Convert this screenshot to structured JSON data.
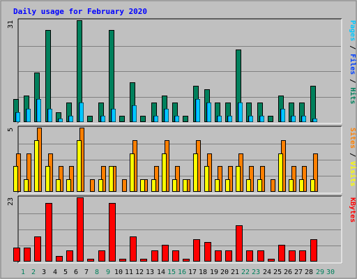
{
  "chart_data": {
    "type": "bar",
    "title": "Daily usage for February 2020",
    "categories": [
      "1",
      "2",
      "3",
      "4",
      "5",
      "6",
      "7",
      "8",
      "9",
      "10",
      "11",
      "12",
      "13",
      "14",
      "15",
      "16",
      "17",
      "18",
      "19",
      "20",
      "21",
      "22",
      "23",
      "24",
      "25",
      "26",
      "27",
      "28",
      "29",
      "30"
    ],
    "weekend_categories": [
      "1",
      "2",
      "8",
      "9",
      "15",
      "16",
      "22",
      "23",
      "29",
      "30"
    ],
    "panels": [
      {
        "key": "hits_files",
        "max_label": "31",
        "ymax": 31,
        "side_labels": [
          {
            "text": "Pages",
            "color": "#00c8ff"
          },
          {
            "text": " / ",
            "color": "#000000"
          },
          {
            "text": "Files",
            "color": "#0040ff"
          },
          {
            "text": " / ",
            "color": "#000000"
          },
          {
            "text": "Hits",
            "color": "#00805c"
          }
        ],
        "series": [
          {
            "name": "Hits",
            "color": "#00805c",
            "values": [
              7,
              8,
              15,
              28,
              3,
              6,
              31,
              2,
              6,
              28,
              2,
              12,
              2,
              6,
              8,
              6,
              2,
              11,
              10,
              6,
              6,
              22,
              6,
              6,
              2,
              8,
              6,
              6,
              11,
              0
            ]
          },
          {
            "name": "Files",
            "color": "#0040ff",
            "values": [
              3,
              4,
              7,
              4,
              1,
              2,
              6,
              0,
              2,
              4,
              0,
              5,
              0,
              2,
              4,
              2,
              0,
              7,
              6,
              2,
              2,
              6,
              2,
              2,
              0,
              4,
              2,
              2,
              1,
              0
            ]
          },
          {
            "name": "Pages",
            "color": "#00c8ff",
            "values": [
              3,
              4,
              7,
              4,
              1,
              2,
              6,
              0,
              2,
              4,
              0,
              5,
              0,
              2,
              4,
              2,
              0,
              7,
              6,
              2,
              2,
              6,
              2,
              2,
              0,
              4,
              2,
              2,
              1,
              0
            ]
          }
        ]
      },
      {
        "key": "visits_sites",
        "max_label": "5",
        "ymax": 5,
        "side_labels": [
          {
            "text": "Sites",
            "color": "#ff8000"
          },
          {
            "text": " / ",
            "color": "#000000"
          },
          {
            "text": "Visits",
            "color": "#ffff00"
          }
        ],
        "series": [
          {
            "name": "Visits",
            "color": "#ffff00",
            "values": [
              2,
              1,
              4,
              2,
              1,
              1,
              4,
              0,
              1,
              2,
              0,
              3,
              1,
              1,
              3,
              1,
              1,
              3,
              2,
              1,
              1,
              2,
              1,
              1,
              0,
              3,
              1,
              1,
              1,
              0
            ]
          },
          {
            "name": "Sites",
            "color": "#ff8000",
            "values": [
              3,
              3,
              5,
              3,
              2,
              2,
              5,
              1,
              2,
              2,
              1,
              4,
              1,
              2,
              4,
              2,
              1,
              4,
              3,
              2,
              2,
              3,
              2,
              2,
              1,
              4,
              2,
              2,
              3,
              0
            ]
          }
        ]
      },
      {
        "key": "kbytes",
        "max_label": "23",
        "ymax": 23,
        "side_labels": [
          {
            "text": "KBytes",
            "color": "#ff0000"
          }
        ],
        "series": [
          {
            "name": "KBytes",
            "color": "#ff0000",
            "values": [
              5,
              5,
              9,
              21,
              2,
              4,
              23,
              1,
              4,
              21,
              1,
              9,
              1,
              4,
              6,
              4,
              1,
              8,
              7,
              4,
              4,
              13,
              4,
              4,
              1,
              6,
              4,
              4,
              8,
              0
            ]
          }
        ]
      }
    ]
  },
  "colors": {
    "title": "#0000ff",
    "plot_bg": "#c0c0c0",
    "weekday_label": "#00805c",
    "weekend_label": "#00805c",
    "normal_label": "#000000"
  }
}
